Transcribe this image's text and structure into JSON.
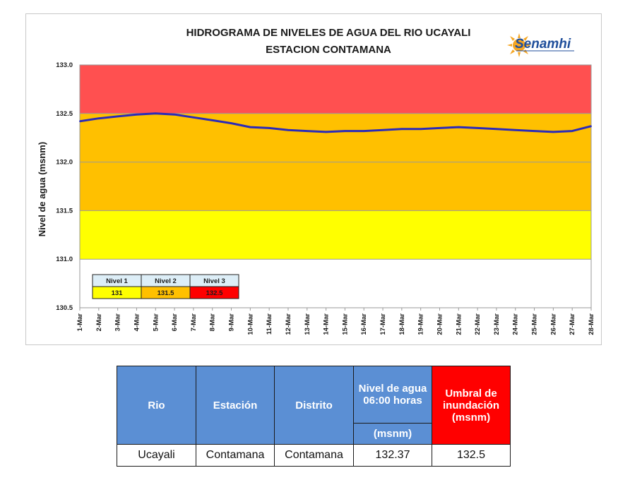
{
  "chart_data": {
    "type": "line",
    "title": "HIDROGRAMA DE NIVELES DE AGUA DEL RIO UCAYALI",
    "subtitle": "ESTACION CONTAMANA",
    "ylabel": "Nivel de agua  (msnm)",
    "xlabel": "",
    "ylim": [
      130.5,
      133.0
    ],
    "yticks": [
      "133.0",
      "132.5",
      "132.0",
      "131.5",
      "131.0",
      "130.5"
    ],
    "categories": [
      "1-Mar",
      "2-Mar",
      "3-Mar",
      "4-Mar",
      "5-Mar",
      "6-Mar",
      "7-Mar",
      "8-Mar",
      "9-Mar",
      "10-Mar",
      "11-Mar",
      "12-Mar",
      "13-Mar",
      "14-Mar",
      "15-Mar",
      "16-Mar",
      "17-Mar",
      "18-Mar",
      "19-Mar",
      "20-Mar",
      "21-Mar",
      "22-Mar",
      "23-Mar",
      "24-Mar",
      "25-Mar",
      "26-Mar",
      "27-Mar",
      "28-Mar"
    ],
    "series": [
      {
        "values": [
          132.42,
          132.45,
          132.47,
          132.49,
          132.5,
          132.49,
          132.46,
          132.43,
          132.4,
          132.36,
          132.35,
          132.33,
          132.32,
          132.31,
          132.32,
          132.32,
          132.33,
          132.34,
          132.34,
          132.35,
          132.36,
          132.35,
          132.34,
          132.33,
          132.32,
          132.31,
          132.32,
          132.37
        ],
        "color": "#2b2bb8"
      }
    ],
    "bands": [
      {
        "from": 132.5,
        "to": 133.0,
        "color": "#ff5050"
      },
      {
        "from": 131.5,
        "to": 132.5,
        "color": "#ffc000"
      },
      {
        "from": 131.0,
        "to": 131.5,
        "color": "#ffff00"
      },
      {
        "from": 130.5,
        "to": 131.0,
        "color": "#ffffff"
      }
    ],
    "grid": true,
    "legend_table": {
      "headers": [
        "Nivel 1",
        "Nivel 2",
        "Nivel 3"
      ],
      "values": [
        "131",
        "131.5",
        "132.5"
      ],
      "header_color": "#ddeef7",
      "value_colors": [
        "#ffff00",
        "#ffc000",
        "#ff0000"
      ]
    }
  },
  "logo": {
    "text": "Senamhi",
    "icon": "sun-logo-icon",
    "color": "#f5a623"
  },
  "table": {
    "headers": {
      "rio": "Rio",
      "estacion": "Estación",
      "distrito": "Distrito",
      "nivel_top": "Nivel de agua 06:00 horas",
      "nivel_unit": "(msnm)",
      "umbral": "Umbral de inundación (msnm)"
    },
    "row": {
      "rio": "Ucayali",
      "estacion": "Contamana",
      "distrito": "Contamana",
      "nivel": "132.37",
      "umbral": "132.5"
    }
  }
}
